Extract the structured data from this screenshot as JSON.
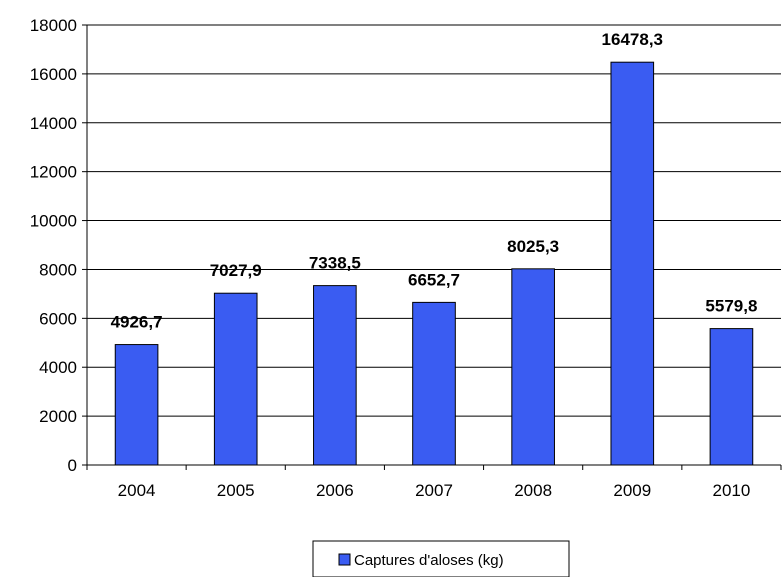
{
  "chart_data": {
    "type": "bar",
    "categories": [
      "2004",
      "2005",
      "2006",
      "2007",
      "2008",
      "2009",
      "2010"
    ],
    "values": [
      4926.7,
      7027.9,
      7338.5,
      6652.7,
      8025.3,
      16478.3,
      5579.8
    ],
    "value_labels": [
      "4926,7",
      "7027,9",
      "7338,5",
      "6652,7",
      "8025,3",
      "16478,3",
      "5579,8"
    ],
    "y_ticks": [
      "0",
      "2000",
      "4000",
      "6000",
      "8000",
      "10000",
      "12000",
      "14000",
      "16000",
      "18000"
    ],
    "ylim": [
      0,
      18000
    ],
    "grid": true,
    "legend": {
      "placement": "bottom",
      "label": "Captures d'aloses (kg)"
    },
    "colors": {
      "bar": "#3a5cf2",
      "bar_outline": "#000000",
      "grid": "#000000"
    }
  }
}
